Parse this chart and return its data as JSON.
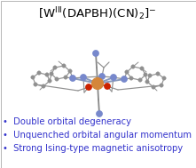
{
  "title_full": "[W$^{\\mathregular{III}}$(DAPBH)(CN)$_{2}$]$^{-}$",
  "bullet_points": [
    "Double orbital degeneracy",
    "Unquenched orbital angular momentum",
    "Strong Ising-type magnetic anisotropy"
  ],
  "bullet_color": "#3333CC",
  "background_color": "#ffffff",
  "title_fontsize": 9.5,
  "bullet_fontsize": 7.2,
  "atom_W_color": "#D4863A",
  "atom_N_color": "#7788CC",
  "atom_N_eq_color": "#7788CC",
  "atom_O_color": "#CC2200",
  "atom_C_color": "#909090",
  "bond_color": "#888888"
}
